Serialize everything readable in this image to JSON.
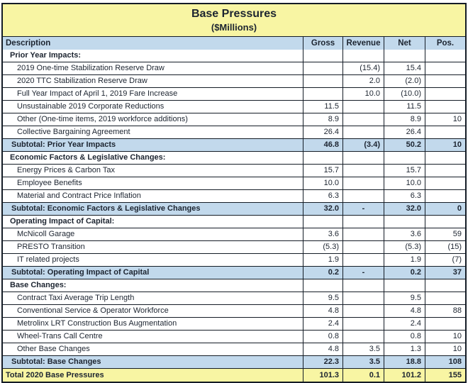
{
  "title": "Base Pressures",
  "subtitle": "($Millions)",
  "columns": [
    "Description",
    "Gross",
    "Revenue",
    "Net",
    "Pos."
  ],
  "colors": {
    "title_background": "#f8f5a3",
    "header_background": "#c2d9ec",
    "subtotal_background": "#c2d9ec",
    "total_background": "#f8f5a3",
    "border": "#141c26"
  },
  "rows": [
    {
      "type": "section",
      "label": "Prior Year Impacts:",
      "gross": "",
      "revenue": "",
      "net": "",
      "pos": ""
    },
    {
      "type": "data",
      "label": "2019 One-time Stabilization Reserve Draw",
      "gross": "",
      "revenue": "(15.4)",
      "net": "15.4",
      "pos": ""
    },
    {
      "type": "data",
      "label": "2020 TTC Stabilization Reserve Draw",
      "gross": "",
      "revenue": "2.0",
      "net": "(2.0)",
      "pos": ""
    },
    {
      "type": "data",
      "label": "Full Year Impact of April 1, 2019 Fare Increase",
      "gross": "",
      "revenue": "10.0",
      "net": "(10.0)",
      "pos": ""
    },
    {
      "type": "data",
      "label": "Unsustainable 2019 Corporate Reductions",
      "gross": "11.5",
      "revenue": "",
      "net": "11.5",
      "pos": ""
    },
    {
      "type": "data",
      "label": "Other (One-time items, 2019 workforce additions)",
      "gross": "8.9",
      "revenue": "",
      "net": "8.9",
      "pos": "10"
    },
    {
      "type": "data",
      "label": "Collective Bargaining Agreement",
      "gross": "26.4",
      "revenue": "",
      "net": "26.4",
      "pos": ""
    },
    {
      "type": "subtotal",
      "label": "Subtotal: Prior Year Impacts",
      "gross": "46.8",
      "revenue": "(3.4)",
      "net": "50.2",
      "pos": "10"
    },
    {
      "type": "section",
      "label": "Economic Factors & Legislative Changes:",
      "gross": "",
      "revenue": "",
      "net": "",
      "pos": ""
    },
    {
      "type": "data",
      "label": "Energy Prices & Carbon Tax",
      "gross": "15.7",
      "revenue": "",
      "net": "15.7",
      "pos": ""
    },
    {
      "type": "data",
      "label": "Employee Benefits",
      "gross": "10.0",
      "revenue": "",
      "net": "10.0",
      "pos": ""
    },
    {
      "type": "data",
      "label": "Material and Contract Price Inflation",
      "gross": "6.3",
      "revenue": "",
      "net": "6.3",
      "pos": ""
    },
    {
      "type": "subtotal",
      "label": "Subtotal: Economic Factors & Legislative Changes",
      "gross": "32.0",
      "revenue": "-",
      "net": "32.0",
      "pos": "0"
    },
    {
      "type": "section",
      "label": "Operating Impact of Capital:",
      "gross": "",
      "revenue": "",
      "net": "",
      "pos": ""
    },
    {
      "type": "data",
      "label": "McNicoll Garage",
      "gross": "3.6",
      "revenue": "",
      "net": "3.6",
      "pos": "59"
    },
    {
      "type": "data",
      "label": "PRESTO Transition",
      "gross": "(5.3)",
      "revenue": "",
      "net": "(5.3)",
      "pos": "(15)"
    },
    {
      "type": "data",
      "label": "IT related projects",
      "gross": "1.9",
      "revenue": "",
      "net": "1.9",
      "pos": "(7)"
    },
    {
      "type": "subtotal",
      "label": "Subtotal: Operating Impact of Capital",
      "gross": "0.2",
      "revenue": "-",
      "net": "0.2",
      "pos": "37"
    },
    {
      "type": "section",
      "label": "Base Changes:",
      "gross": "",
      "revenue": "",
      "net": "",
      "pos": ""
    },
    {
      "type": "data",
      "label": "Contract Taxi Average Trip Length",
      "gross": "9.5",
      "revenue": "",
      "net": "9.5",
      "pos": ""
    },
    {
      "type": "data",
      "label": "Conventional Service & Operator Workforce",
      "gross": "4.8",
      "revenue": "",
      "net": "4.8",
      "pos": "88"
    },
    {
      "type": "data",
      "label": "Metrolinx LRT Construction Bus Augmentation",
      "gross": "2.4",
      "revenue": "",
      "net": "2.4",
      "pos": ""
    },
    {
      "type": "data",
      "label": "Wheel-Trans Call Centre",
      "gross": "0.8",
      "revenue": "",
      "net": "0.8",
      "pos": "10"
    },
    {
      "type": "data",
      "label": "Other Base Changes",
      "gross": "4.8",
      "revenue": "3.5",
      "net": "1.3",
      "pos": "10"
    },
    {
      "type": "subtotal",
      "label": "Subtotal: Base Changes",
      "gross": "22.3",
      "revenue": "3.5",
      "net": "18.8",
      "pos": "108"
    },
    {
      "type": "total",
      "label": "Total 2020 Base Pressures",
      "gross": "101.3",
      "revenue": "0.1",
      "net": "101.2",
      "pos": "155"
    }
  ]
}
